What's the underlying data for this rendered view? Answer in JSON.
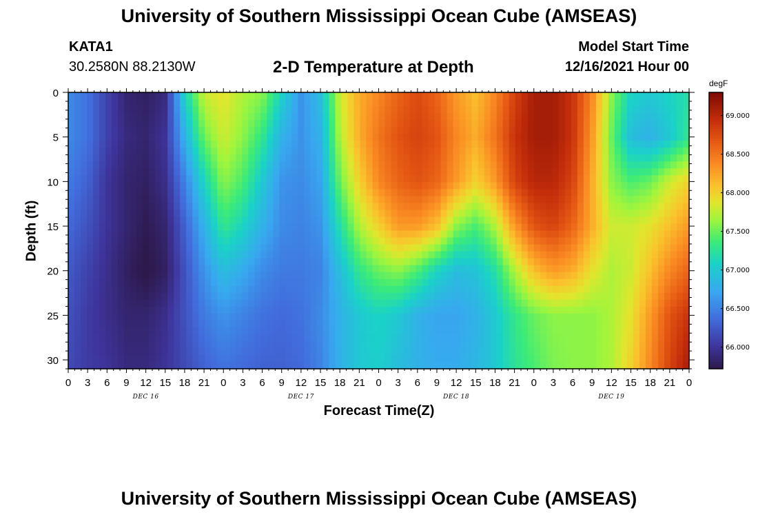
{
  "header": {
    "title": "University of Southern Mississippi Ocean Cube (AMSEAS)",
    "station": "KATA1",
    "coords": "30.2580N  88.2130W",
    "subtitle": "2-D Temperature at Depth",
    "model_start_label": "Model Start Time",
    "model_start_value": "12/16/2021 Hour 00"
  },
  "footer": {
    "title": "University of Southern Mississippi Ocean Cube (AMSEAS)"
  },
  "chart_data": {
    "type": "heatmap",
    "xlabel": "Forecast Time(Z)",
    "ylabel": "Depth (ft)",
    "x_unit": "hours since 12/16/2021 00Z",
    "xlim": [
      0,
      96
    ],
    "ylim": [
      0,
      31
    ],
    "y_inverted": true,
    "x_tick_labels": [
      "0",
      "3",
      "6",
      "9",
      "12",
      "15",
      "18",
      "21",
      "0",
      "3",
      "6",
      "9",
      "12",
      "15",
      "18",
      "21",
      "0",
      "3",
      "6",
      "9",
      "12",
      "15",
      "18",
      "21",
      "0",
      "3",
      "6",
      "9",
      "12",
      "15",
      "18",
      "21",
      "0"
    ],
    "x_tick_hours": [
      0,
      3,
      6,
      9,
      12,
      15,
      18,
      21,
      24,
      27,
      30,
      33,
      36,
      39,
      42,
      45,
      48,
      51,
      54,
      57,
      60,
      63,
      66,
      69,
      72,
      75,
      78,
      81,
      84,
      87,
      90,
      93,
      96
    ],
    "day_labels": [
      {
        "label": "DEC 16",
        "hour": 12
      },
      {
        "label": "DEC 17",
        "hour": 36
      },
      {
        "label": "DEC 18",
        "hour": 60
      },
      {
        "label": "DEC 19",
        "hour": 84
      }
    ],
    "y_ticks": [
      0,
      5,
      10,
      15,
      20,
      25,
      30
    ],
    "colorbar": {
      "unit": "degF",
      "min": 65.72,
      "max": 69.3,
      "tick_values": [
        66.0,
        66.5,
        67.0,
        67.5,
        68.0,
        68.5,
        69.0
      ],
      "tick_labels": [
        "66.000",
        "66.500",
        "67.000",
        "67.500",
        "68.000",
        "68.500",
        "69.000"
      ]
    },
    "grid": false,
    "temperature_field": {
      "hours": [
        0,
        3,
        6,
        9,
        12,
        15,
        18,
        21,
        24,
        27,
        30,
        33,
        36,
        39,
        42,
        45,
        48,
        51,
        54,
        57,
        60,
        63,
        66,
        69,
        72,
        75,
        78,
        81,
        84,
        87,
        90,
        93,
        96
      ],
      "depths": [
        0,
        5,
        10,
        15,
        20,
        25,
        31
      ],
      "values_degF": [
        [
          66.55,
          66.4,
          66.1,
          65.85,
          65.8,
          65.9,
          67.1,
          67.8,
          67.9,
          67.7,
          67.6,
          67.1,
          66.6,
          66.9,
          67.8,
          68.2,
          68.4,
          68.6,
          68.75,
          68.6,
          68.3,
          68.1,
          68.4,
          68.8,
          69.1,
          69.1,
          68.9,
          68.4,
          67.6,
          67.1,
          67.0,
          67.1,
          67.2
        ],
        [
          66.55,
          66.4,
          66.1,
          65.9,
          65.85,
          66.0,
          66.8,
          67.5,
          67.8,
          67.6,
          67.3,
          66.8,
          66.6,
          66.8,
          67.7,
          68.2,
          68.5,
          68.7,
          68.8,
          68.7,
          68.4,
          68.2,
          68.5,
          68.9,
          69.1,
          69.1,
          68.9,
          68.3,
          67.5,
          66.9,
          66.8,
          67.0,
          67.3
        ],
        [
          66.45,
          66.3,
          66.0,
          65.85,
          65.8,
          65.95,
          66.5,
          67.1,
          67.6,
          67.4,
          67.0,
          66.6,
          66.55,
          66.7,
          67.5,
          68.0,
          68.4,
          68.6,
          68.7,
          68.6,
          68.3,
          68.0,
          68.3,
          68.8,
          69.0,
          69.0,
          68.8,
          68.2,
          67.6,
          67.4,
          67.5,
          67.8,
          68.0
        ],
        [
          66.35,
          66.2,
          66.0,
          65.85,
          65.75,
          65.85,
          66.3,
          66.8,
          67.3,
          67.1,
          66.8,
          66.55,
          66.5,
          66.6,
          67.2,
          67.7,
          68.0,
          68.3,
          68.3,
          68.1,
          67.6,
          67.4,
          67.7,
          68.3,
          68.7,
          68.8,
          68.6,
          68.2,
          67.8,
          67.8,
          67.9,
          68.1,
          68.3
        ],
        [
          66.25,
          66.1,
          65.95,
          65.8,
          65.7,
          65.8,
          66.2,
          66.6,
          66.9,
          66.75,
          66.55,
          66.45,
          66.45,
          66.5,
          66.9,
          67.3,
          67.5,
          67.6,
          67.4,
          67.1,
          66.9,
          66.95,
          67.2,
          67.7,
          68.1,
          68.3,
          68.2,
          67.9,
          67.7,
          67.8,
          68.1,
          68.4,
          68.6
        ],
        [
          66.2,
          66.05,
          65.95,
          65.85,
          65.85,
          65.95,
          66.2,
          66.45,
          66.6,
          66.5,
          66.4,
          66.35,
          66.4,
          66.55,
          66.8,
          67.0,
          67.1,
          67.0,
          66.8,
          66.7,
          66.7,
          66.8,
          67.0,
          67.3,
          67.5,
          67.6,
          67.6,
          67.6,
          67.7,
          67.9,
          68.3,
          68.7,
          68.9
        ],
        [
          66.15,
          66.05,
          66.0,
          65.9,
          65.9,
          66.0,
          66.15,
          66.3,
          66.4,
          66.35,
          66.3,
          66.3,
          66.35,
          66.5,
          66.8,
          67.0,
          67.05,
          66.9,
          66.8,
          66.75,
          66.75,
          66.85,
          67.0,
          67.25,
          67.4,
          67.55,
          67.6,
          67.6,
          67.7,
          68.0,
          68.4,
          68.8,
          69.1
        ]
      ]
    }
  }
}
